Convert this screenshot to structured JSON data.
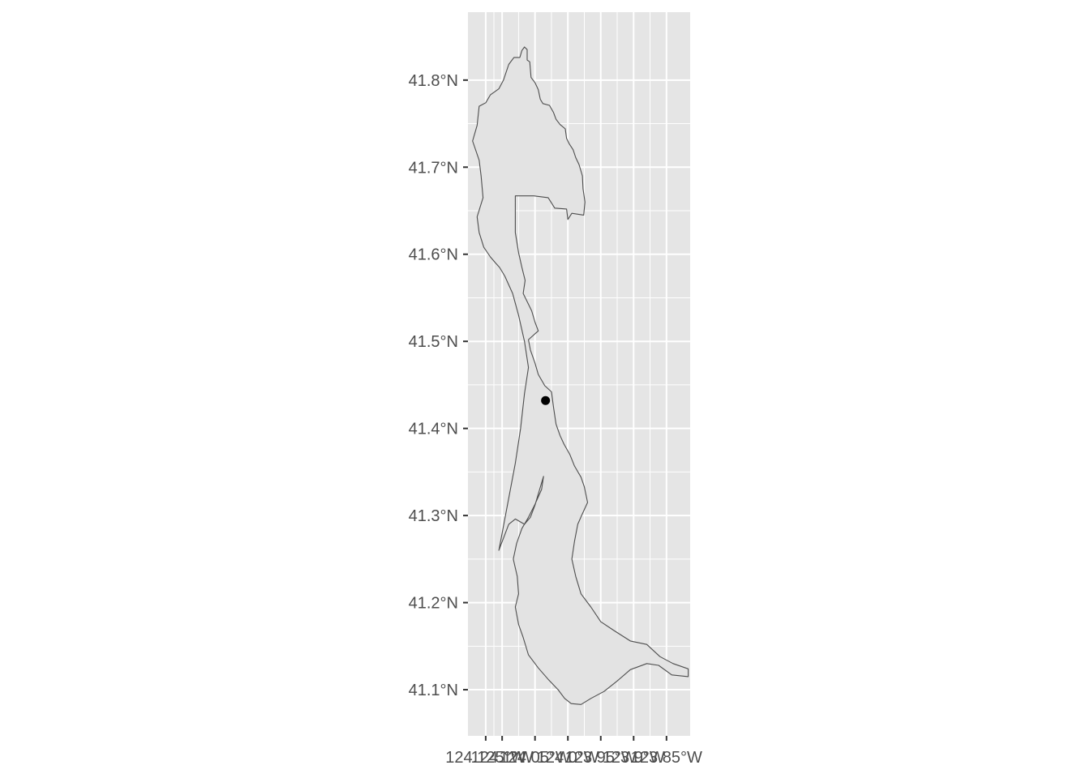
{
  "chart_data": {
    "type": "map",
    "panel_background": "#e5e5e5",
    "gridline_color": "#ffffff",
    "region_fill": "#e3e3e3",
    "region_stroke": "#4d4d4d",
    "point_color": "#000000",
    "xlim": [
      -124.152,
      -123.814
    ],
    "ylim": [
      41.047,
      41.878
    ],
    "x_ticks": [
      {
        "value": -124.125,
        "label": "124.125°W"
      },
      {
        "value": -124.1,
        "label": "124.1°W"
      },
      {
        "value": -124.05,
        "label": "124.05°W"
      },
      {
        "value": -124.0,
        "label": "124.0°W"
      },
      {
        "value": -123.95,
        "label": "123.95°W"
      },
      {
        "value": -123.9,
        "label": "123.9°W"
      },
      {
        "value": -123.85,
        "label": "123.85°W"
      }
    ],
    "y_ticks": [
      {
        "value": 41.1,
        "label": "41.1°N"
      },
      {
        "value": 41.2,
        "label": "41.2°N"
      },
      {
        "value": 41.3,
        "label": "41.3°N"
      },
      {
        "value": 41.4,
        "label": "41.4°N"
      },
      {
        "value": 41.5,
        "label": "41.5°N"
      },
      {
        "value": 41.6,
        "label": "41.6°N"
      },
      {
        "value": 41.7,
        "label": "41.7°N"
      },
      {
        "value": 41.8,
        "label": "41.8°N"
      }
    ],
    "points": [
      {
        "lon": -124.034,
        "lat": 41.432
      }
    ],
    "region": [
      [
        -124.066,
        41.838
      ],
      [
        -124.062,
        41.835
      ],
      [
        -124.062,
        41.823
      ],
      [
        -124.058,
        41.821
      ],
      [
        -124.056,
        41.803
      ],
      [
        -124.05,
        41.797
      ],
      [
        -124.045,
        41.789
      ],
      [
        -124.042,
        41.778
      ],
      [
        -124.038,
        41.773
      ],
      [
        -124.028,
        41.771
      ],
      [
        -124.022,
        41.763
      ],
      [
        -124.018,
        41.755
      ],
      [
        -124.012,
        41.749
      ],
      [
        -124.004,
        41.744
      ],
      [
        -124.002,
        41.733
      ],
      [
        -123.998,
        41.727
      ],
      [
        -123.992,
        41.72
      ],
      [
        -123.988,
        41.711
      ],
      [
        -123.983,
        41.703
      ],
      [
        -123.978,
        41.69
      ],
      [
        -123.977,
        41.675
      ],
      [
        -123.974,
        41.66
      ],
      [
        -123.976,
        41.645
      ],
      [
        -123.994,
        41.647
      ],
      [
        -124.0,
        41.64
      ],
      [
        -124.002,
        41.652
      ],
      [
        -124.02,
        41.653
      ],
      [
        -124.03,
        41.665
      ],
      [
        -124.052,
        41.667
      ],
      [
        -124.08,
        41.667
      ],
      [
        -124.08,
        41.625
      ],
      [
        -124.075,
        41.602
      ],
      [
        -124.07,
        41.585
      ],
      [
        -124.065,
        41.57
      ],
      [
        -124.068,
        41.555
      ],
      [
        -124.055,
        41.535
      ],
      [
        -124.05,
        41.522
      ],
      [
        -124.045,
        41.512
      ],
      [
        -124.06,
        41.502
      ],
      [
        -124.057,
        41.49
      ],
      [
        -124.05,
        41.475
      ],
      [
        -124.045,
        41.462
      ],
      [
        -124.035,
        41.449
      ],
      [
        -124.025,
        41.442
      ],
      [
        -124.022,
        41.425
      ],
      [
        -124.018,
        41.405
      ],
      [
        -124.012,
        41.392
      ],
      [
        -124.006,
        41.382
      ],
      [
        -123.997,
        41.37
      ],
      [
        -123.99,
        41.357
      ],
      [
        -123.98,
        41.344
      ],
      [
        -123.975,
        41.333
      ],
      [
        -123.97,
        41.315
      ],
      [
        -123.978,
        41.302
      ],
      [
        -123.985,
        41.29
      ],
      [
        -123.99,
        41.27
      ],
      [
        -123.994,
        41.25
      ],
      [
        -123.988,
        41.23
      ],
      [
        -123.98,
        41.21
      ],
      [
        -123.965,
        41.195
      ],
      [
        -123.95,
        41.178
      ],
      [
        -123.93,
        41.168
      ],
      [
        -123.905,
        41.156
      ],
      [
        -123.88,
        41.152
      ],
      [
        -123.87,
        41.145
      ],
      [
        -123.86,
        41.138
      ],
      [
        -123.84,
        41.13
      ],
      [
        -123.817,
        41.124
      ],
      [
        -123.817,
        41.115
      ],
      [
        -123.842,
        41.117
      ],
      [
        -123.862,
        41.128
      ],
      [
        -123.88,
        41.13
      ],
      [
        -123.905,
        41.123
      ],
      [
        -123.925,
        41.11
      ],
      [
        -123.945,
        41.098
      ],
      [
        -123.965,
        41.09
      ],
      [
        -123.98,
        41.083
      ],
      [
        -123.995,
        41.084
      ],
      [
        -124.005,
        41.09
      ],
      [
        -124.015,
        41.1
      ],
      [
        -124.03,
        41.112
      ],
      [
        -124.045,
        41.125
      ],
      [
        -124.06,
        41.14
      ],
      [
        -124.068,
        41.16
      ],
      [
        -124.075,
        41.175
      ],
      [
        -124.08,
        41.195
      ],
      [
        -124.075,
        41.21
      ],
      [
        -124.077,
        41.23
      ],
      [
        -124.083,
        41.25
      ],
      [
        -124.078,
        41.268
      ],
      [
        -124.07,
        41.285
      ],
      [
        -124.06,
        41.298
      ],
      [
        -124.05,
        41.313
      ],
      [
        -124.04,
        41.33
      ],
      [
        -124.037,
        41.345
      ],
      [
        -124.043,
        41.33
      ],
      [
        -124.05,
        41.312
      ],
      [
        -124.057,
        41.298
      ],
      [
        -124.066,
        41.29
      ],
      [
        -124.08,
        41.296
      ],
      [
        -124.09,
        41.29
      ],
      [
        -124.098,
        41.274
      ],
      [
        -124.105,
        41.26
      ],
      [
        -124.1,
        41.28
      ],
      [
        -124.09,
        41.32
      ],
      [
        -124.08,
        41.36
      ],
      [
        -124.072,
        41.4
      ],
      [
        -124.066,
        41.44
      ],
      [
        -124.06,
        41.47
      ],
      [
        -124.066,
        41.5
      ],
      [
        -124.075,
        41.53
      ],
      [
        -124.084,
        41.555
      ],
      [
        -124.096,
        41.575
      ],
      [
        -124.104,
        41.585
      ],
      [
        -124.11,
        41.59
      ],
      [
        -124.118,
        41.597
      ],
      [
        -124.128,
        41.608
      ],
      [
        -124.135,
        41.625
      ],
      [
        -124.138,
        41.643
      ],
      [
        -124.129,
        41.665
      ],
      [
        -124.132,
        41.69
      ],
      [
        -124.135,
        41.708
      ],
      [
        -124.145,
        41.73
      ],
      [
        -124.138,
        41.748
      ],
      [
        -124.135,
        41.77
      ],
      [
        -124.125,
        41.774
      ],
      [
        -124.118,
        41.783
      ],
      [
        -124.105,
        41.79
      ],
      [
        -124.098,
        41.8
      ],
      [
        -124.09,
        41.818
      ],
      [
        -124.082,
        41.826
      ],
      [
        -124.073,
        41.826
      ],
      [
        -124.07,
        41.834
      ],
      [
        -124.066,
        41.838
      ]
    ]
  }
}
